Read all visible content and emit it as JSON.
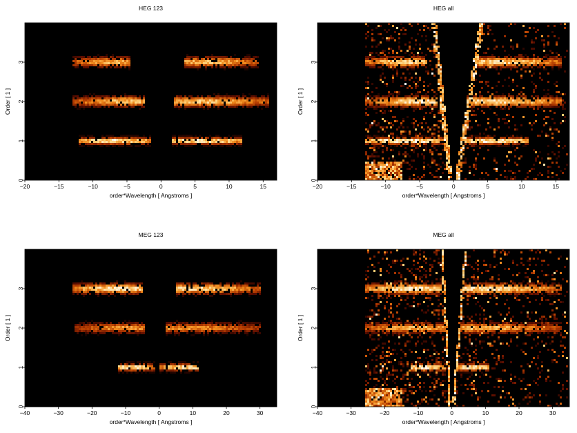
{
  "chart_data": [
    {
      "type": "heatmap",
      "title": "HEG 123",
      "xlabel": "order*Wavelength [ Angstroms ]",
      "ylabel": "Order [ 1 ]",
      "xlim": [
        -20,
        17
      ],
      "ylim": [
        0,
        4
      ],
      "xticks": [
        -20,
        -15,
        -10,
        -5,
        0,
        5,
        10,
        15
      ],
      "yticks": [
        0,
        1,
        2,
        3
      ],
      "colormap": [
        "#000000",
        "#5a0d00",
        "#b23a00",
        "#f08a1c",
        "#ffd27a",
        "#ffffff"
      ],
      "bands": [
        {
          "order": 1,
          "x_ranges": [
            [
              -12,
              -1.5
            ],
            [
              1.5,
              12
            ]
          ],
          "peak": 0.95,
          "peak_at": [
            -7,
            6
          ]
        },
        {
          "order": 2,
          "x_ranges": [
            [
              -13,
              -2.5
            ],
            [
              2,
              16
            ]
          ],
          "peak": 0.8,
          "peak_at": [
            -5,
            6
          ]
        },
        {
          "order": 3,
          "x_ranges": [
            [
              -13,
              -4.5
            ],
            [
              3.5,
              14.5
            ]
          ],
          "peak": 0.75,
          "peak_at": [
            -7,
            7
          ]
        }
      ]
    },
    {
      "type": "heatmap",
      "title": "HEG all",
      "xlabel": "order*Wavelength [ Angstroms ]",
      "ylabel": "Order [ 1 ]",
      "xlim": [
        -20,
        17
      ],
      "ylim": [
        0,
        4
      ],
      "xticks": [
        -20,
        -15,
        -10,
        -5,
        0,
        5,
        10,
        15
      ],
      "yticks": [
        0,
        1,
        2,
        3
      ],
      "colormap": [
        "#000000",
        "#5a0d00",
        "#b23a00",
        "#f08a1c",
        "#ffd27a",
        "#ffffff"
      ],
      "background_region": {
        "x_left": -13,
        "x_right": 17,
        "wedge_zero_x": [
          -0.5,
          0.5
        ]
      },
      "bands": [
        {
          "order": 1,
          "x_ranges": [
            [
              -13,
              -1.5
            ],
            [
              1.5,
              11
            ]
          ],
          "peak": 1.0,
          "peak_at": [
            -7,
            6
          ]
        },
        {
          "order": 2,
          "x_ranges": [
            [
              -13,
              -2.5
            ],
            [
              2,
              16
            ]
          ],
          "peak": 0.9,
          "peak_at": [
            -5,
            6
          ]
        },
        {
          "order": 3,
          "x_ranges": [
            [
              -13,
              -4
            ],
            [
              3.5,
              16
            ]
          ],
          "peak": 0.85,
          "peak_at": [
            -7,
            7
          ]
        }
      ]
    },
    {
      "type": "heatmap",
      "title": "MEG 123",
      "xlabel": "order*Wavelength [ Angstroms ]",
      "ylabel": "Order [ 1 ]",
      "xlim": [
        -40,
        35
      ],
      "ylim": [
        0,
        4
      ],
      "xticks": [
        -40,
        -30,
        -20,
        -10,
        0,
        10,
        20,
        30
      ],
      "yticks": [
        0,
        1,
        2,
        3
      ],
      "colormap": [
        "#000000",
        "#5a0d00",
        "#b23a00",
        "#f08a1c",
        "#ffd27a",
        "#ffffff"
      ],
      "bands": [
        {
          "order": 1,
          "x_ranges": [
            [
              -12,
              -1
            ],
            [
              0,
              12
            ]
          ],
          "peak": 0.95,
          "peak_at": [
            -8,
            8
          ]
        },
        {
          "order": 2,
          "x_ranges": [
            [
              -25,
              -4
            ],
            [
              2,
              30
            ]
          ],
          "peak": 0.65,
          "peak_at": [
            -10,
            8
          ]
        },
        {
          "order": 3,
          "x_ranges": [
            [
              -26,
              -5
            ],
            [
              5,
              30
            ]
          ],
          "peak": 0.9,
          "peak_at": [
            -12,
            10
          ]
        }
      ]
    },
    {
      "type": "heatmap",
      "title": "MEG all",
      "xlabel": "order*Wavelength [ Angstroms ]",
      "ylabel": "Order [ 1 ]",
      "xlim": [
        -40,
        35
      ],
      "ylim": [
        0,
        4
      ],
      "xticks": [
        -40,
        -30,
        -20,
        -10,
        0,
        10,
        20,
        30
      ],
      "yticks": [
        0,
        1,
        2,
        3
      ],
      "colormap": [
        "#000000",
        "#5a0d00",
        "#b23a00",
        "#f08a1c",
        "#ffd27a",
        "#ffffff"
      ],
      "background_region": {
        "x_left": -26,
        "x_right": 35,
        "wedge_zero_x": [
          -0.5,
          0.5
        ]
      },
      "bands": [
        {
          "order": 1,
          "x_ranges": [
            [
              -12,
              -1.5
            ],
            [
              1,
              11
            ]
          ],
          "peak": 1.0,
          "peak_at": [
            -8,
            6
          ]
        },
        {
          "order": 2,
          "x_ranges": [
            [
              -26,
              -2
            ],
            [
              2,
              33
            ]
          ],
          "peak": 0.75,
          "peak_at": [
            -10,
            8
          ]
        },
        {
          "order": 3,
          "x_ranges": [
            [
              -26,
              -3
            ],
            [
              3,
              33
            ]
          ],
          "peak": 0.9,
          "peak_at": [
            -12,
            10
          ]
        }
      ]
    }
  ]
}
